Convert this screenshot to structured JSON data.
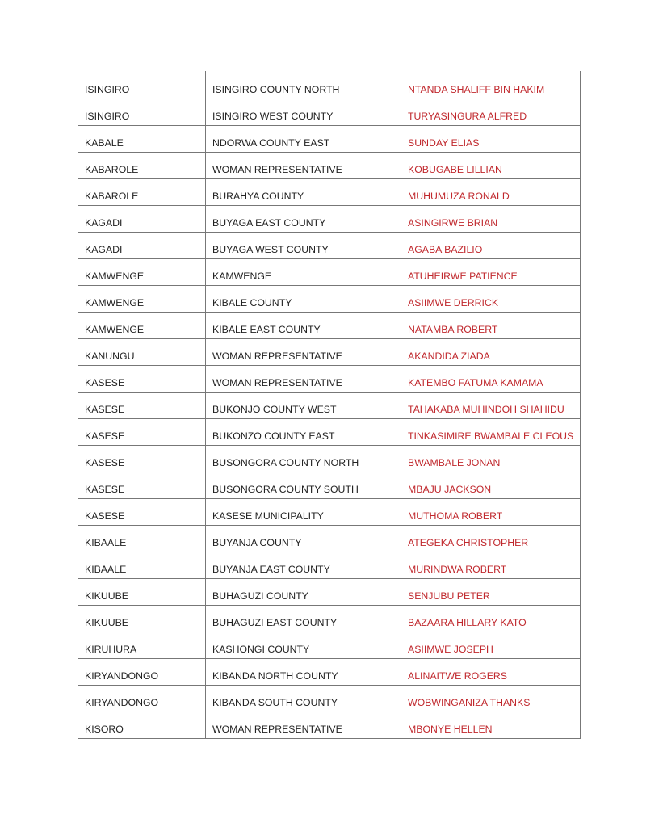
{
  "colors": {
    "name_text": "#c0282d",
    "text": "#222222",
    "border": "#777777"
  },
  "rows": [
    [
      "ISINGIRO",
      "ISINGIRO COUNTY NORTH",
      "NTANDA SHALIFF BIN HAKIM"
    ],
    [
      "ISINGIRO",
      "ISINGIRO WEST COUNTY",
      "TURYASINGURA ALFRED"
    ],
    [
      "KABALE",
      "NDORWA COUNTY EAST",
      "SUNDAY ELIAS"
    ],
    [
      "KABAROLE",
      "WOMAN REPRESENTATIVE",
      "KOBUGABE LILLIAN"
    ],
    [
      "KABAROLE",
      "BURAHYA COUNTY",
      "MUHUMUZA RONALD"
    ],
    [
      "KAGADI",
      "BUYAGA EAST COUNTY",
      "ASINGIRWE BRIAN"
    ],
    [
      "KAGADI",
      "BUYAGA WEST COUNTY",
      "AGABA BAZILIO"
    ],
    [
      "KAMWENGE",
      "KAMWENGE",
      "ATUHEIRWE PATIENCE"
    ],
    [
      "KAMWENGE",
      "KIBALE COUNTY",
      "ASIIMWE DERRICK"
    ],
    [
      "KAMWENGE",
      "KIBALE EAST COUNTY",
      "NATAMBA ROBERT"
    ],
    [
      "KANUNGU",
      "WOMAN REPRESENTATIVE",
      "AKANDIDA ZIADA"
    ],
    [
      "KASESE",
      "WOMAN REPRESENTATIVE",
      "KATEMBO FATUMA KAMAMA"
    ],
    [
      "KASESE",
      "BUKONJO COUNTY WEST",
      "TAHAKABA MUHINDOH SHAHIDU"
    ],
    [
      "KASESE",
      "BUKONZO COUNTY  EAST",
      "TINKASIMIRE BWAMBALE CLEOUS"
    ],
    [
      "KASESE",
      "BUSONGORA COUNTY NORTH",
      "BWAMBALE JONAN"
    ],
    [
      "KASESE",
      "BUSONGORA COUNTY SOUTH",
      "MBAJU JACKSON"
    ],
    [
      "KASESE",
      "KASESE MUNICIPALITY",
      "MUTHOMA ROBERT"
    ],
    [
      "KIBAALE",
      "BUYANJA COUNTY",
      "ATEGEKA CHRISTOPHER"
    ],
    [
      "KIBAALE",
      "BUYANJA EAST COUNTY",
      "MURINDWA ROBERT"
    ],
    [
      "KIKUUBE",
      "BUHAGUZI COUNTY",
      "SENJUBU PETER"
    ],
    [
      "KIKUUBE",
      "BUHAGUZI EAST COUNTY",
      "BAZAARA HILLARY KATO"
    ],
    [
      "KIRUHURA",
      "KASHONGI COUNTY",
      "ASIIMWE JOSEPH"
    ],
    [
      "KIRYANDONGO",
      "KIBANDA NORTH COUNTY",
      "ALINAITWE ROGERS"
    ],
    [
      "KIRYANDONGO",
      "KIBANDA SOUTH COUNTY",
      "WOBWINGANIZA THANKS"
    ],
    [
      "KISORO",
      "WOMAN REPRESENTATIVE",
      "MBONYE HELLEN"
    ]
  ]
}
